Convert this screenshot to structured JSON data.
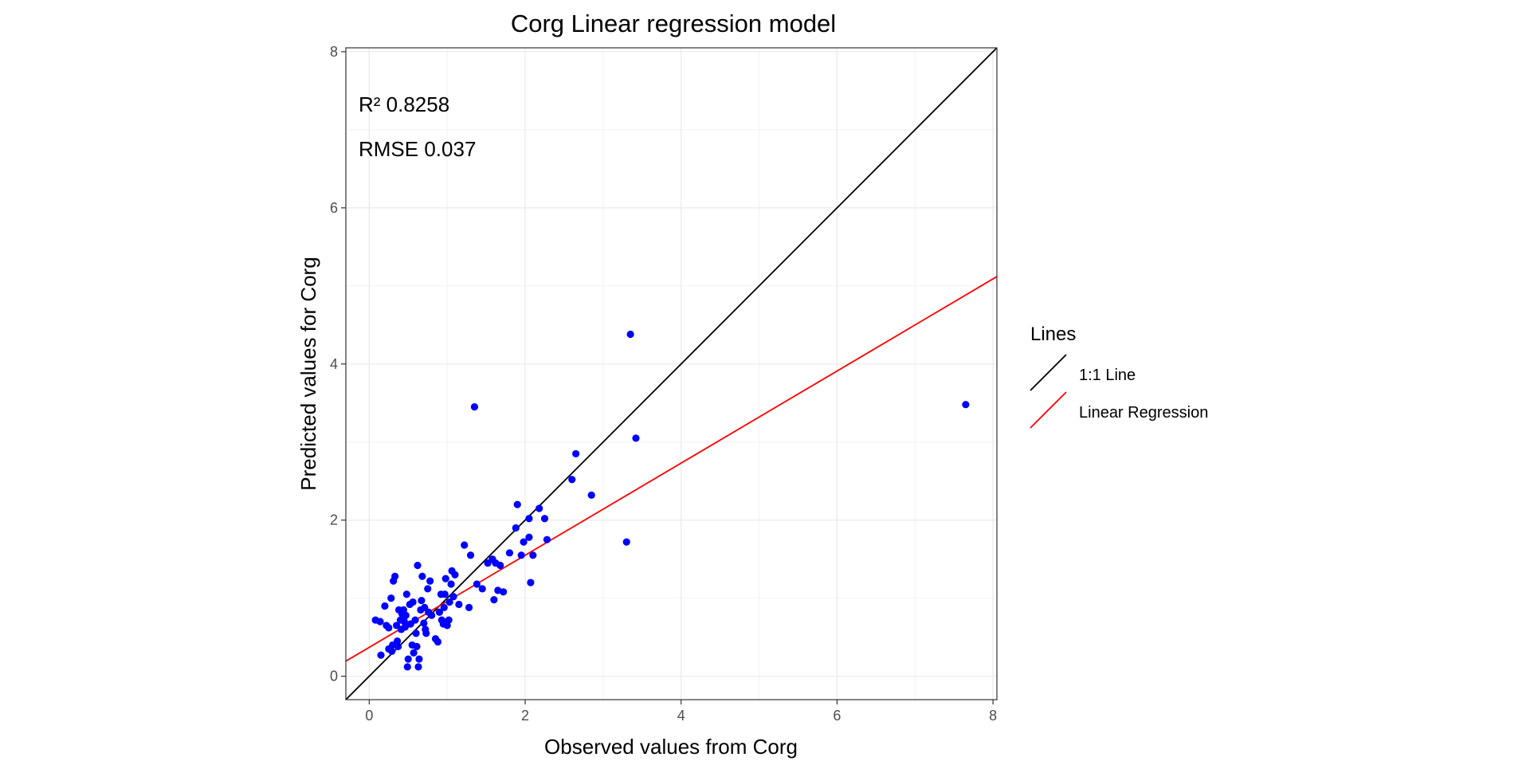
{
  "chart_data": {
    "type": "scatter",
    "title": "Corg  Linear regression model",
    "xlabel": "Observed values from Corg",
    "ylabel": "Predicted values for Corg",
    "xlim": [
      -0.3,
      8.05
    ],
    "ylim": [
      -0.3,
      8.05
    ],
    "x_ticks": [
      0,
      2,
      4,
      6,
      8
    ],
    "y_ticks": [
      0,
      2,
      4,
      6,
      8
    ],
    "x_tick_labels": [
      "0",
      "2",
      "4",
      "6",
      "8"
    ],
    "y_tick_labels": [
      "0",
      "2",
      "4",
      "6",
      "8"
    ],
    "grid": true,
    "annotations": [
      {
        "text": "R²  0.8258"
      },
      {
        "text": "RMSE 0.037"
      }
    ],
    "legend": {
      "title": "Lines",
      "position": "right",
      "entries": [
        {
          "label": "1:1 Line",
          "color": "#000000"
        },
        {
          "label": "Linear Regression",
          "color": "#ff0000"
        }
      ]
    },
    "lines": [
      {
        "name": "1:1 Line",
        "color": "#000000",
        "intercept": 0,
        "slope": 1
      },
      {
        "name": "Linear Regression",
        "color": "#ff0000",
        "intercept": 0.37,
        "slope": 0.59
      }
    ],
    "point_color": "#0000ff",
    "points": [
      [
        0.08,
        0.72
      ],
      [
        0.14,
        0.7
      ],
      [
        0.15,
        0.27
      ],
      [
        0.2,
        0.9
      ],
      [
        0.22,
        0.65
      ],
      [
        0.25,
        0.62
      ],
      [
        0.25,
        0.35
      ],
      [
        0.28,
        1.0
      ],
      [
        0.29,
        0.32
      ],
      [
        0.3,
        0.4
      ],
      [
        0.31,
        1.22
      ],
      [
        0.33,
        1.28
      ],
      [
        0.35,
        0.65
      ],
      [
        0.36,
        0.45
      ],
      [
        0.37,
        0.38
      ],
      [
        0.38,
        0.85
      ],
      [
        0.4,
        0.72
      ],
      [
        0.41,
        0.6
      ],
      [
        0.42,
        0.8
      ],
      [
        0.44,
        0.85
      ],
      [
        0.45,
        0.7
      ],
      [
        0.46,
        0.63
      ],
      [
        0.47,
        0.78
      ],
      [
        0.48,
        1.05
      ],
      [
        0.49,
        0.12
      ],
      [
        0.5,
        0.22
      ],
      [
        0.52,
        0.92
      ],
      [
        0.53,
        0.67
      ],
      [
        0.55,
        0.4
      ],
      [
        0.56,
        0.95
      ],
      [
        0.57,
        0.3
      ],
      [
        0.59,
        0.72
      ],
      [
        0.6,
        0.55
      ],
      [
        0.61,
        0.38
      ],
      [
        0.62,
        1.42
      ],
      [
        0.63,
        0.12
      ],
      [
        0.64,
        0.22
      ],
      [
        0.66,
        0.85
      ],
      [
        0.67,
        0.97
      ],
      [
        0.68,
        1.28
      ],
      [
        0.7,
        0.68
      ],
      [
        0.71,
        0.88
      ],
      [
        0.72,
        0.6
      ],
      [
        0.73,
        0.55
      ],
      [
        0.75,
        1.12
      ],
      [
        0.76,
        0.82
      ],
      [
        0.78,
        1.22
      ],
      [
        0.8,
        0.78
      ],
      [
        0.85,
        0.48
      ],
      [
        0.88,
        0.44
      ],
      [
        0.9,
        0.82
      ],
      [
        0.92,
        1.05
      ],
      [
        0.93,
        0.72
      ],
      [
        0.95,
        0.67
      ],
      [
        0.96,
        0.88
      ],
      [
        0.97,
        1.05
      ],
      [
        0.98,
        1.25
      ],
      [
        1.0,
        0.65
      ],
      [
        1.02,
        0.72
      ],
      [
        1.03,
        0.95
      ],
      [
        1.05,
        1.18
      ],
      [
        1.06,
        1.35
      ],
      [
        1.08,
        1.02
      ],
      [
        1.1,
        1.3
      ],
      [
        1.15,
        0.92
      ],
      [
        1.22,
        1.68
      ],
      [
        1.28,
        0.88
      ],
      [
        1.3,
        1.55
      ],
      [
        1.35,
        3.45
      ],
      [
        1.38,
        1.18
      ],
      [
        1.45,
        1.12
      ],
      [
        1.52,
        1.45
      ],
      [
        1.58,
        1.5
      ],
      [
        1.6,
        0.98
      ],
      [
        1.62,
        1.45
      ],
      [
        1.65,
        1.1
      ],
      [
        1.68,
        1.42
      ],
      [
        1.72,
        1.08
      ],
      [
        1.8,
        1.58
      ],
      [
        1.88,
        1.9
      ],
      [
        1.9,
        2.2
      ],
      [
        1.95,
        1.55
      ],
      [
        1.98,
        1.72
      ],
      [
        2.05,
        2.02
      ],
      [
        2.05,
        1.78
      ],
      [
        2.07,
        1.2
      ],
      [
        2.1,
        1.55
      ],
      [
        2.18,
        2.15
      ],
      [
        2.25,
        2.02
      ],
      [
        2.28,
        1.75
      ],
      [
        2.6,
        2.52
      ],
      [
        2.65,
        2.85
      ],
      [
        2.85,
        2.32
      ],
      [
        3.3,
        1.72
      ],
      [
        3.35,
        4.38
      ],
      [
        3.42,
        3.05
      ],
      [
        7.65,
        3.48
      ]
    ]
  }
}
